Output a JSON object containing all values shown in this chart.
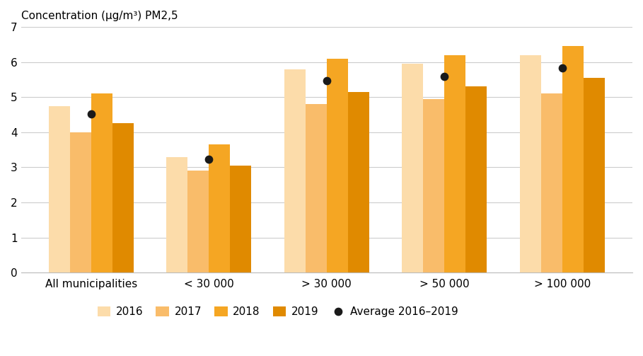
{
  "categories": [
    "All municipalities",
    "< 30 000",
    "> 30 000",
    "> 50 000",
    "> 100 000"
  ],
  "years": [
    "2016",
    "2017",
    "2018",
    "2019"
  ],
  "values": {
    "2016": [
      4.75,
      3.3,
      5.8,
      5.95,
      6.2
    ],
    "2017": [
      4.0,
      2.9,
      4.8,
      4.95,
      5.1
    ],
    "2018": [
      5.1,
      3.65,
      6.1,
      6.2,
      6.45
    ],
    "2019": [
      4.25,
      3.05,
      5.15,
      5.3,
      5.55
    ]
  },
  "averages": [
    4.525,
    3.225,
    5.4625,
    5.6,
    5.825
  ],
  "bar_colors": [
    "#FCDCAA",
    "#F9BC6A",
    "#F5A623",
    "#E08A00"
  ],
  "avg_color": "#1a1a1a",
  "ylabel": "Concentration (μg/m³) PM2,5",
  "ylim": [
    0,
    7
  ],
  "yticks": [
    0,
    1,
    2,
    3,
    4,
    5,
    6,
    7
  ],
  "background_color": "#ffffff",
  "grid_color": "#cccccc",
  "legend_labels": [
    "2016",
    "2017",
    "2018",
    "2019",
    "Average 2016–2019"
  ]
}
